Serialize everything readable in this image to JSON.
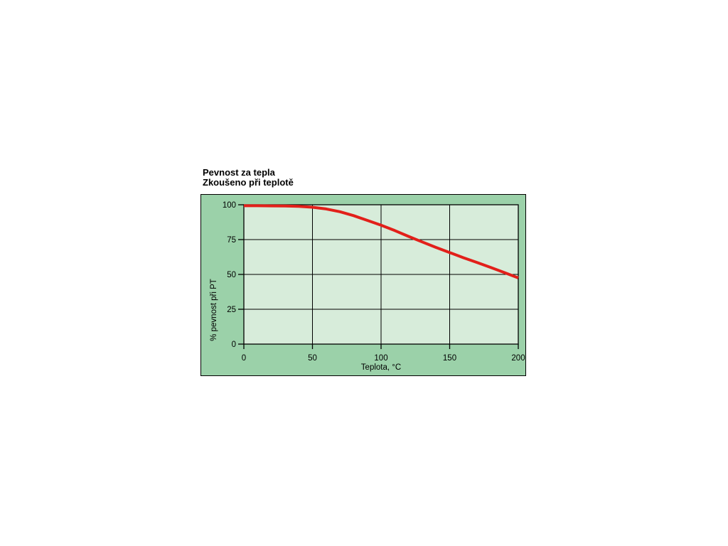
{
  "chart_data": {
    "type": "line",
    "title_line1": "Pevnost za tepla",
    "title_line2": "Zkoušeno při teplotě",
    "xlabel": "Teplota, °C",
    "ylabel": "% pevnost při PT",
    "xlim": [
      0,
      200
    ],
    "ylim": [
      0,
      100
    ],
    "x_ticks": [
      0,
      50,
      100,
      150,
      200
    ],
    "y_ticks": [
      0,
      25,
      50,
      75,
      100
    ],
    "grid": true,
    "legend": false,
    "series": [
      {
        "name": "pevnost-pri-PT",
        "color": "#e2201a",
        "x": [
          0,
          10,
          20,
          30,
          40,
          50,
          60,
          70,
          80,
          90,
          100,
          110,
          120,
          130,
          140,
          150,
          160,
          170,
          180,
          190,
          200
        ],
        "y": [
          99.3,
          99.3,
          99.2,
          99.1,
          98.9,
          98.2,
          97.0,
          95.0,
          92.2,
          88.8,
          85.3,
          81.5,
          77.3,
          73.3,
          69.4,
          65.7,
          62.0,
          58.5,
          55.0,
          51.3,
          47.5
        ]
      }
    ],
    "colors": {
      "panel_bg": "#9bd1a9",
      "plot_bg": "#d7ecda",
      "axis": "#000000",
      "line": "#e2201a"
    }
  }
}
